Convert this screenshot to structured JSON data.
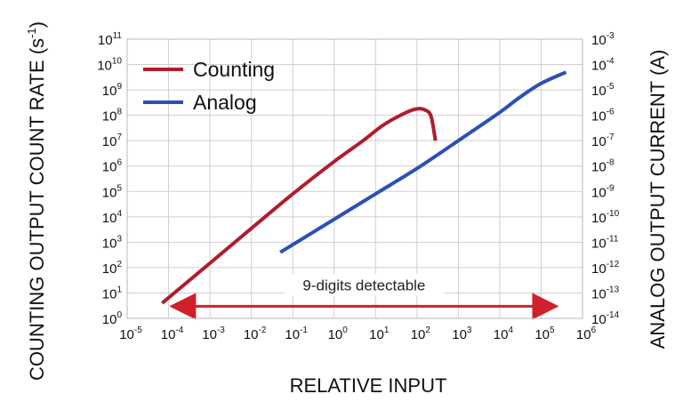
{
  "chart_data": {
    "type": "line",
    "title": "",
    "xlabel": "RELATIVE INPUT",
    "ylabel_left": "COUNTING OUTPUT COUNT RATE (s-1)",
    "ylabel_left_parts": {
      "main": "COUNTING OUTPUT COUNT RATE (s",
      "sup": "-1",
      "end": ")"
    },
    "ylabel_right": "ANALOG OUTPUT CURRENT (A)",
    "x_scale": "log",
    "y_scale": "log",
    "xlim": [
      1e-05,
      1000000.0
    ],
    "ylim_left": [
      1,
      100000000000.0
    ],
    "ylim_right": [
      1e-14,
      0.001
    ],
    "grid": true,
    "legend_position": "top-left",
    "x_ticks": [
      {
        "base": "10",
        "exp": "-5",
        "value": 1e-05
      },
      {
        "base": "10",
        "exp": "-4",
        "value": 0.0001
      },
      {
        "base": "10",
        "exp": "-3",
        "value": 0.001
      },
      {
        "base": "10",
        "exp": "-2",
        "value": 0.01
      },
      {
        "base": "10",
        "exp": "-1",
        "value": 0.1
      },
      {
        "base": "10",
        "exp": "0",
        "value": 1
      },
      {
        "base": "10",
        "exp": "1",
        "value": 10
      },
      {
        "base": "10",
        "exp": "2",
        "value": 100
      },
      {
        "base": "10",
        "exp": "3",
        "value": 1000
      },
      {
        "base": "10",
        "exp": "4",
        "value": 10000
      },
      {
        "base": "10",
        "exp": "5",
        "value": 100000
      },
      {
        "base": "10",
        "exp": "6",
        "value": 1000000
      }
    ],
    "y_left_ticks": [
      {
        "base": "10",
        "exp": "0",
        "value": 1
      },
      {
        "base": "10",
        "exp": "1",
        "value": 10
      },
      {
        "base": "10",
        "exp": "2",
        "value": 100
      },
      {
        "base": "10",
        "exp": "3",
        "value": 1000
      },
      {
        "base": "10",
        "exp": "4",
        "value": 10000
      },
      {
        "base": "10",
        "exp": "5",
        "value": 100000
      },
      {
        "base": "10",
        "exp": "6",
        "value": 1000000
      },
      {
        "base": "10",
        "exp": "7",
        "value": 10000000
      },
      {
        "base": "10",
        "exp": "8",
        "value": 100000000
      },
      {
        "base": "10",
        "exp": "9",
        "value": 1000000000
      },
      {
        "base": "10",
        "exp": "10",
        "value": 10000000000
      },
      {
        "base": "10",
        "exp": "11",
        "value": 100000000000
      }
    ],
    "y_right_ticks": [
      {
        "base": "10",
        "exp": "-14",
        "value": 1e-14
      },
      {
        "base": "10",
        "exp": "-13",
        "value": 1e-13
      },
      {
        "base": "10",
        "exp": "-12",
        "value": 1e-12
      },
      {
        "base": "10",
        "exp": "-11",
        "value": 1e-11
      },
      {
        "base": "10",
        "exp": "-10",
        "value": 1e-10
      },
      {
        "base": "10",
        "exp": "-9",
        "value": 1e-09
      },
      {
        "base": "10",
        "exp": "-8",
        "value": 1e-08
      },
      {
        "base": "10",
        "exp": "-7",
        "value": 1e-07
      },
      {
        "base": "10",
        "exp": "-6",
        "value": 1e-06
      },
      {
        "base": "10",
        "exp": "-5",
        "value": 1e-05
      },
      {
        "base": "10",
        "exp": "-4",
        "value": 0.0001
      },
      {
        "base": "10",
        "exp": "-3",
        "value": 0.001
      }
    ],
    "series": [
      {
        "name": "Counting",
        "axis": "left",
        "color": "#b01c2e",
        "points": [
          {
            "x": 7e-05,
            "y": 4
          },
          {
            "x": 0.001,
            "y": 150
          },
          {
            "x": 0.01,
            "y": 3500
          },
          {
            "x": 0.1,
            "y": 80000
          },
          {
            "x": 1,
            "y": 1500000
          },
          {
            "x": 5,
            "y": 10000000
          },
          {
            "x": 15,
            "y": 40000000
          },
          {
            "x": 50,
            "y": 120000000
          },
          {
            "x": 100,
            "y": 180000000
          },
          {
            "x": 160,
            "y": 160000000
          },
          {
            "x": 220,
            "y": 90000000
          },
          {
            "x": 280,
            "y": 10000000
          }
        ]
      },
      {
        "name": "Analog",
        "axis": "right",
        "color": "#2a50b8",
        "points": [
          {
            "x": 0.05,
            "y": 4e-12
          },
          {
            "x": 1,
            "y": 8e-11
          },
          {
            "x": 10,
            "y": 8e-10
          },
          {
            "x": 100,
            "y": 8e-09
          },
          {
            "x": 1000,
            "y": 1e-07
          },
          {
            "x": 10000,
            "y": 1.3e-06
          },
          {
            "x": 30000,
            "y": 5e-06
          },
          {
            "x": 100000,
            "y": 1.8e-05
          },
          {
            "x": 400000,
            "y": 5e-05
          }
        ]
      }
    ],
    "annotations": [
      {
        "text": "9-digits detectable",
        "type": "double-arrow",
        "x_from": 7e-05,
        "x_to": 400000,
        "y": 3,
        "color": "#d0202a"
      }
    ]
  }
}
